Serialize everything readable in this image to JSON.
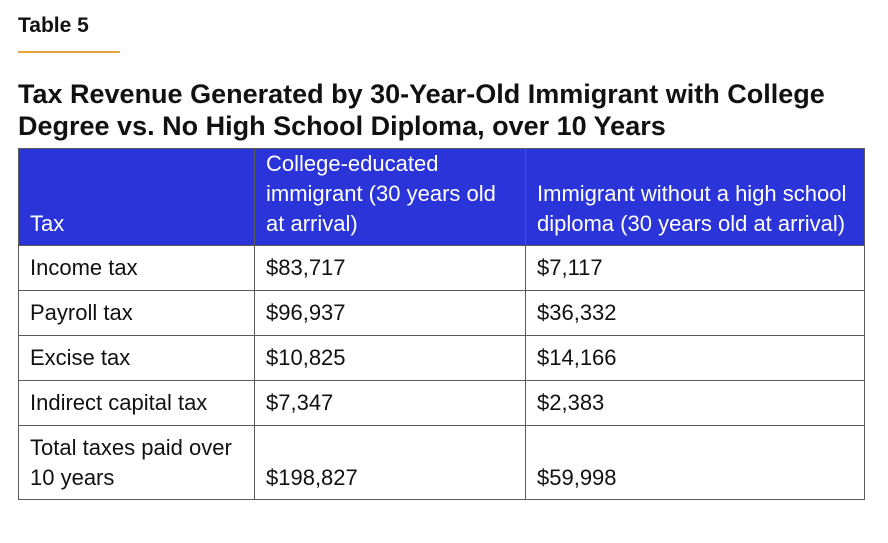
{
  "table_label": "Table 5",
  "title": "Tax Revenue Generated by 30-Year-Old Immigrant with College Degree vs. No High School Diploma, over 10 Years",
  "colors": {
    "header_bg": "#2a34d8",
    "header_text": "#ffffff",
    "accent_rule": "#e8a23a"
  },
  "table": {
    "headers": [
      "Tax",
      "College-educated immigrant (30 years old at arrival)",
      "Immigrant without a high school diploma (30 years old at arrival)"
    ],
    "rows": [
      [
        "Income tax",
        "$83,717",
        "$7,117"
      ],
      [
        "Payroll tax",
        "$96,937",
        "$36,332"
      ],
      [
        "Excise tax",
        "$10,825",
        "$14,166"
      ],
      [
        "Indirect capital tax",
        "$7,347",
        "$2,383"
      ],
      [
        "Total taxes paid over 10 years",
        "$198,827",
        "$59,998"
      ]
    ]
  }
}
